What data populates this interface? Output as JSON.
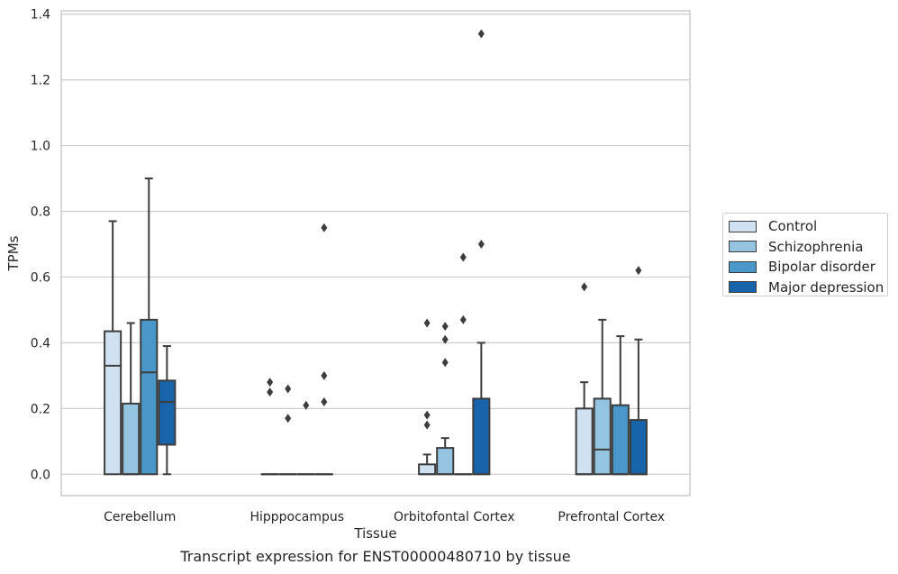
{
  "chart_data": {
    "type": "box",
    "title": "",
    "caption": "Transcript expression for ENST00000480710 by tissue",
    "xlabel": "Tissue",
    "ylabel": "TPMs",
    "ylim": [
      -0.065,
      1.41
    ],
    "yticks": [
      0.0,
      0.2,
      0.4,
      0.6,
      0.8,
      1.0,
      1.2,
      1.4
    ],
    "ytick_labels": [
      "0.0",
      "0.2",
      "0.4",
      "0.6",
      "0.8",
      "1.0",
      "1.2",
      "1.4"
    ],
    "grid": "horizontal",
    "legend_position": "right",
    "categories": [
      "Cerebellum",
      "Hipppocampus",
      "Orbitofontal Cortex",
      "Prefrontal Cortex"
    ],
    "series": [
      {
        "name": "Control",
        "color": "#d0e1f2",
        "boxes": [
          {
            "q1": 0.0,
            "median": 0.33,
            "q3": 0.435,
            "whisker_low": 0.0,
            "whisker_high": 0.77,
            "outliers": []
          },
          {
            "q1": 0.0,
            "median": 0.0,
            "q3": 0.0,
            "whisker_low": 0.0,
            "whisker_high": 0.0,
            "outliers": [
              0.28,
              0.25
            ]
          },
          {
            "q1": 0.0,
            "median": 0.0,
            "q3": 0.03,
            "whisker_low": 0.0,
            "whisker_high": 0.06,
            "outliers": [
              0.46,
              0.18,
              0.15
            ]
          },
          {
            "q1": 0.0,
            "median": 0.0,
            "q3": 0.2,
            "whisker_low": 0.0,
            "whisker_high": 0.28,
            "outliers": [
              0.57
            ]
          }
        ]
      },
      {
        "name": "Schizophrenia",
        "color": "#94c4df",
        "boxes": [
          {
            "q1": 0.0,
            "median": 0.0,
            "q3": 0.215,
            "whisker_low": 0.0,
            "whisker_high": 0.46,
            "outliers": []
          },
          {
            "q1": 0.0,
            "median": 0.0,
            "q3": 0.0,
            "whisker_low": 0.0,
            "whisker_high": 0.0,
            "outliers": [
              0.26,
              0.17
            ]
          },
          {
            "q1": 0.0,
            "median": 0.0,
            "q3": 0.08,
            "whisker_low": 0.0,
            "whisker_high": 0.11,
            "outliers": [
              0.45,
              0.41,
              0.34
            ]
          },
          {
            "q1": 0.0,
            "median": 0.075,
            "q3": 0.23,
            "whisker_low": 0.0,
            "whisker_high": 0.47,
            "outliers": []
          }
        ]
      },
      {
        "name": "Bipolar disorder",
        "color": "#4a98c9",
        "boxes": [
          {
            "q1": 0.0,
            "median": 0.31,
            "q3": 0.47,
            "whisker_low": 0.0,
            "whisker_high": 0.9,
            "outliers": []
          },
          {
            "q1": 0.0,
            "median": 0.0,
            "q3": 0.0,
            "whisker_low": 0.0,
            "whisker_high": 0.0,
            "outliers": [
              0.21
            ]
          },
          {
            "q1": 0.0,
            "median": 0.0,
            "q3": 0.0,
            "whisker_low": 0.0,
            "whisker_high": 0.0,
            "outliers": [
              0.66,
              0.47
            ]
          },
          {
            "q1": 0.0,
            "median": 0.0,
            "q3": 0.21,
            "whisker_low": 0.0,
            "whisker_high": 0.42,
            "outliers": []
          }
        ]
      },
      {
        "name": "Major depression",
        "color": "#1764ab",
        "boxes": [
          {
            "q1": 0.09,
            "median": 0.22,
            "q3": 0.285,
            "whisker_low": 0.0,
            "whisker_high": 0.39,
            "outliers": []
          },
          {
            "q1": 0.0,
            "median": 0.0,
            "q3": 0.0,
            "whisker_low": 0.0,
            "whisker_high": 0.0,
            "outliers": [
              0.75,
              0.3,
              0.22
            ]
          },
          {
            "q1": 0.0,
            "median": 0.0,
            "q3": 0.23,
            "whisker_low": 0.0,
            "whisker_high": 0.4,
            "outliers": [
              1.34,
              0.7
            ]
          },
          {
            "q1": 0.0,
            "median": 0.0,
            "q3": 0.165,
            "whisker_low": 0.0,
            "whisker_high": 0.41,
            "outliers": [
              0.62
            ]
          }
        ]
      }
    ]
  }
}
